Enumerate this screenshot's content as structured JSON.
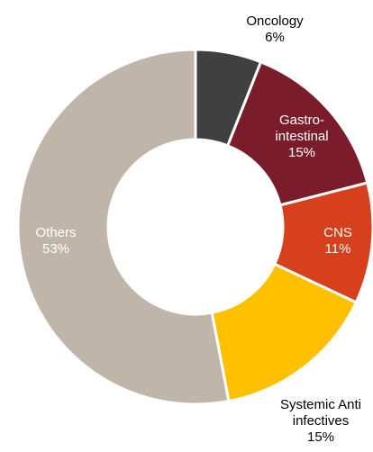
{
  "chart_data": {
    "type": "donut",
    "categories": [
      "Oncology",
      "Gastro-intestinal",
      "CNS",
      "Systemic Anti infectives",
      "Others"
    ],
    "values": [
      6,
      15,
      11,
      15,
      53
    ],
    "value_labels": [
      "6%",
      "15%",
      "11%",
      "15%",
      "53%"
    ],
    "colors": [
      "#404040",
      "#7b1c2a",
      "#d6401c",
      "#ffc000",
      "#bfb5a8"
    ]
  }
}
